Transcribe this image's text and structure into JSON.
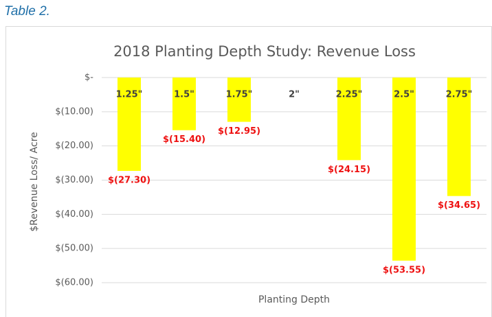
{
  "caption": "Table 2.",
  "chart_data": {
    "type": "bar",
    "title": "2018 Planting Depth Study: Revenue Loss",
    "x_label": "Planting Depth",
    "y_label": "$Revenue Loss/ Acre",
    "categories": [
      "1.25\"",
      "1.5\"",
      "1.75\"",
      "2\"",
      "2.25\"",
      "2.5\"",
      "2.75\""
    ],
    "values": [
      -27.3,
      -15.4,
      -12.95,
      0,
      -24.15,
      -53.55,
      -34.65
    ],
    "value_labels": [
      "$(27.30)",
      "$(15.40)",
      "$(12.95)",
      null,
      "$(24.15)",
      "$(53.55)",
      "$(34.65)"
    ],
    "color": "#ffff00",
    "label_color": "#ee1111",
    "ylim": [
      -60,
      0
    ],
    "yticks": [
      {
        "value": 0,
        "label": "$-"
      },
      {
        "value": -10,
        "label": "$(10.00)"
      },
      {
        "value": -20,
        "label": "$(20.00)"
      },
      {
        "value": -30,
        "label": "$(30.00)"
      },
      {
        "value": -40,
        "label": "$(40.00)"
      },
      {
        "value": -50,
        "label": "$(50.00)"
      },
      {
        "value": -60,
        "label": "$(60.00)"
      }
    ],
    "grid": true
  }
}
